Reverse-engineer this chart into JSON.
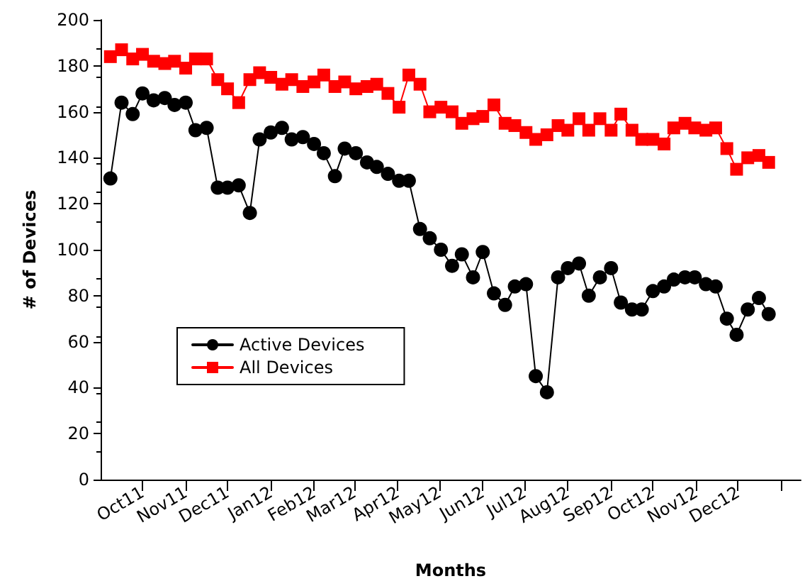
{
  "chart_data": {
    "type": "line",
    "xlabel": "Months",
    "ylabel": "# of Devices",
    "x": [
      "2011-09-08",
      "2011-09-16",
      "2011-09-24",
      "2011-10-01",
      "2011-10-09",
      "2011-10-17",
      "2011-10-24",
      "2011-11-01",
      "2011-11-08",
      "2011-11-16",
      "2011-11-24",
      "2011-12-01",
      "2011-12-09",
      "2011-12-17",
      "2011-12-24",
      "2012-01-01",
      "2012-01-09",
      "2012-01-16",
      "2012-01-24",
      "2012-02-01",
      "2012-02-08",
      "2012-02-16",
      "2012-02-23",
      "2012-03-02",
      "2012-03-10",
      "2012-03-17",
      "2012-03-25",
      "2012-04-02",
      "2012-04-09",
      "2012-04-17",
      "2012-04-24",
      "2012-05-02",
      "2012-05-10",
      "2012-05-17",
      "2012-05-25",
      "2012-06-01",
      "2012-06-09",
      "2012-06-17",
      "2012-06-24",
      "2012-07-02",
      "2012-07-09",
      "2012-07-17",
      "2012-07-25",
      "2012-08-01",
      "2012-08-09",
      "2012-08-16",
      "2012-08-24",
      "2012-09-01",
      "2012-09-08",
      "2012-09-16",
      "2012-09-23",
      "2012-10-01",
      "2012-10-09",
      "2012-10-16",
      "2012-10-24",
      "2012-10-31",
      "2012-11-08",
      "2012-11-15",
      "2012-11-23",
      "2012-11-30",
      "2012-12-08",
      "2012-12-16",
      "2012-12-23"
    ],
    "series": [
      {
        "name": "Active Devices",
        "color": "#000000",
        "marker": "circle",
        "values": [
          131,
          164,
          159,
          168,
          165,
          166,
          163,
          164,
          152,
          153,
          127,
          127,
          128,
          116,
          148,
          151,
          153,
          148,
          149,
          146,
          142,
          132,
          144,
          142,
          138,
          136,
          133,
          130,
          130,
          109,
          105,
          100,
          93,
          98,
          88,
          99,
          81,
          76,
          84,
          85,
          45,
          38,
          88,
          92,
          94,
          80,
          88,
          92,
          77,
          74,
          74,
          82,
          84,
          87,
          88,
          88,
          85,
          84,
          70,
          63,
          74,
          79,
          72
        ]
      },
      {
        "name": "All Devices",
        "color": "#ff0000",
        "marker": "square",
        "values": [
          184,
          187,
          183,
          185,
          182,
          181,
          182,
          179,
          183,
          183,
          174,
          170,
          164,
          174,
          177,
          175,
          172,
          174,
          171,
          173,
          176,
          171,
          173,
          170,
          171,
          172,
          168,
          162,
          176,
          172,
          160,
          162,
          160,
          155,
          157,
          158,
          163,
          155,
          154,
          151,
          148,
          150,
          154,
          152,
          157,
          152,
          157,
          152,
          159,
          152,
          148,
          148,
          146,
          153,
          155,
          153,
          152,
          153,
          144,
          135,
          140,
          141,
          138
        ]
      }
    ],
    "xlim": [
      "2011-09-01",
      "2013-01-15"
    ],
    "xticks": [
      {
        "value": "2011-10-01",
        "label": "Oct11"
      },
      {
        "value": "2011-11-01",
        "label": "Nov11"
      },
      {
        "value": "2011-12-01",
        "label": "Dec11"
      },
      {
        "value": "2012-01-01",
        "label": "Jan12"
      },
      {
        "value": "2012-02-01",
        "label": "Feb12"
      },
      {
        "value": "2012-03-01",
        "label": "Mar12"
      },
      {
        "value": "2012-04-01",
        "label": "Apr12"
      },
      {
        "value": "2012-05-01",
        "label": "May12"
      },
      {
        "value": "2012-06-01",
        "label": "Jun12"
      },
      {
        "value": "2012-07-01",
        "label": "Jul12"
      },
      {
        "value": "2012-08-01",
        "label": "Aug12"
      },
      {
        "value": "2012-09-01",
        "label": "Sep12"
      },
      {
        "value": "2012-10-01",
        "label": "Oct12"
      },
      {
        "value": "2012-11-01",
        "label": "Nov12"
      },
      {
        "value": "2012-12-01",
        "label": "Dec12"
      },
      {
        "value": "2013-01-01",
        "label": null
      }
    ],
    "ylim": [
      0,
      200
    ],
    "yticks": [
      0,
      20,
      40,
      60,
      80,
      100,
      120,
      140,
      160,
      180,
      200
    ],
    "grid": false,
    "legend": "bottom left",
    "line_style": "solid"
  }
}
